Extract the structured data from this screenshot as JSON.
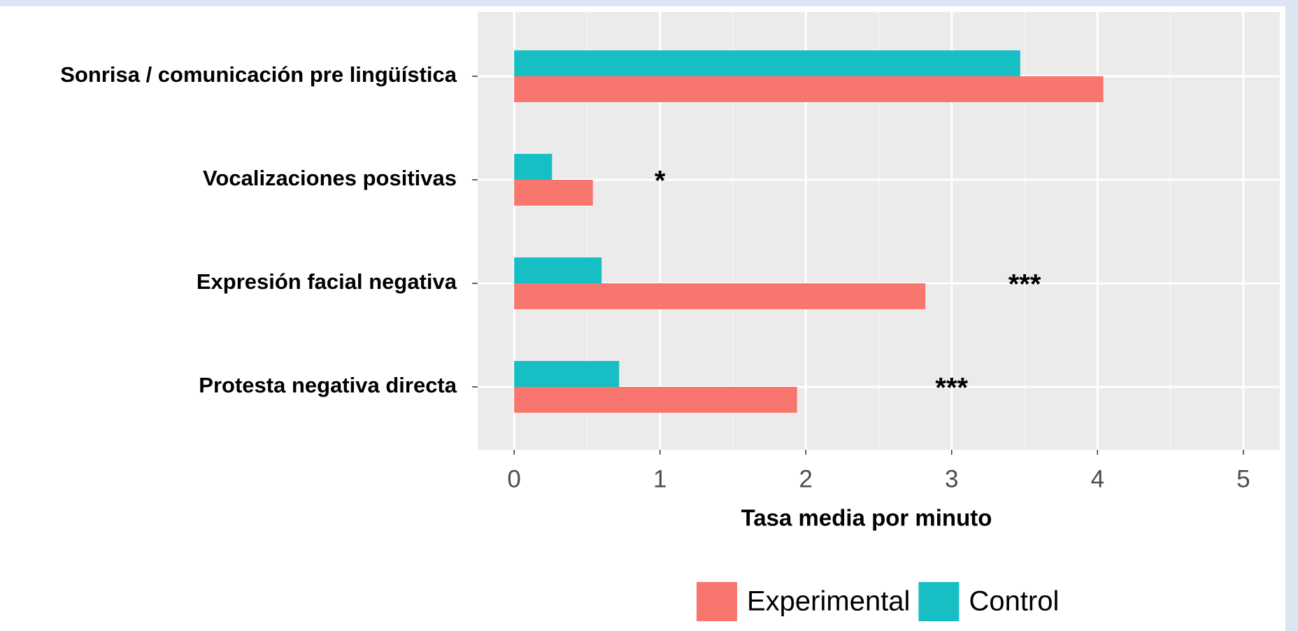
{
  "chart_data": {
    "type": "bar",
    "orientation": "horizontal",
    "categories": [
      "Sonrisa / comunicación pre lingüística",
      "Vocalizaciones positivas",
      "Expresión facial negativa",
      "Protesta negativa directa"
    ],
    "series": [
      {
        "name": "Experimental",
        "color": "#f8766d",
        "values": [
          4.04,
          0.54,
          2.82,
          1.94
        ]
      },
      {
        "name": "Control",
        "color": "#17bfc5",
        "values": [
          3.47,
          0.26,
          0.6,
          0.72
        ]
      }
    ],
    "annotations": [
      null,
      "*",
      "***",
      "***"
    ],
    "annotation_x": [
      null,
      1,
      3.5,
      3
    ],
    "xlabel": "Tasa media por minuto",
    "xlim": [
      -0.25,
      5.25
    ],
    "xticks": [
      0,
      1,
      2,
      3,
      4,
      5
    ],
    "grid": true,
    "legend": "bottom"
  }
}
